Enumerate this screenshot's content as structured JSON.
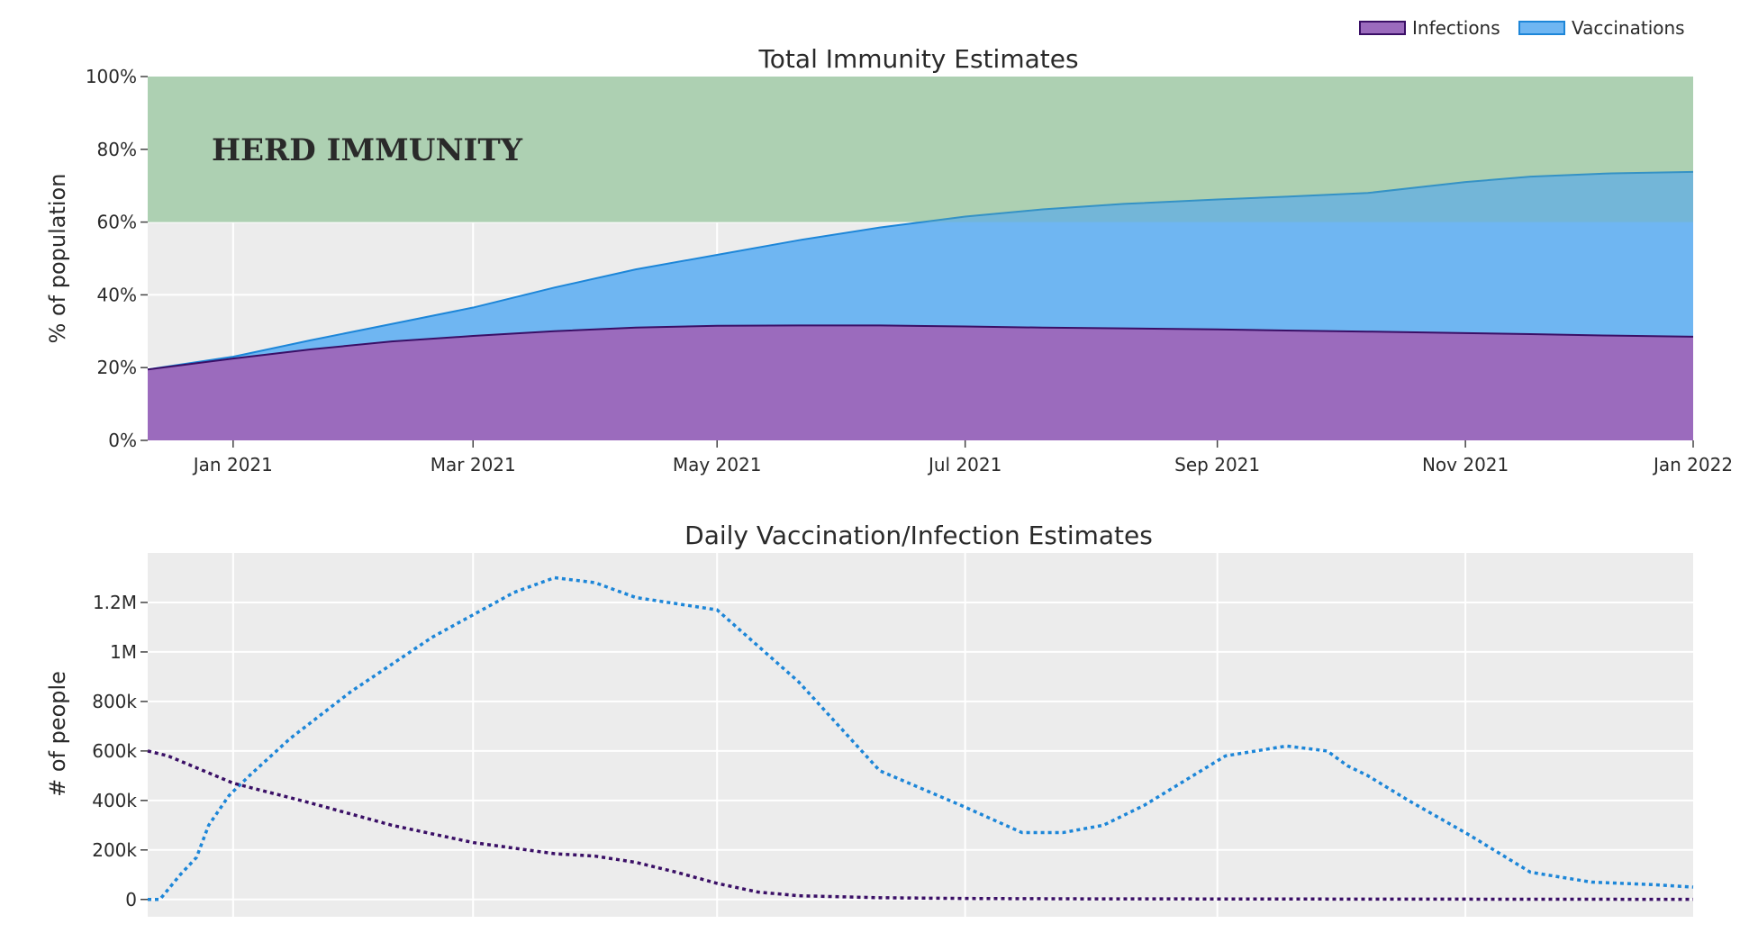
{
  "legend": [
    {
      "label": "Infections",
      "color": "#9b6bbd",
      "line": "#3a0f66"
    },
    {
      "label": "Vaccinations",
      "color": "#6fb6f2",
      "line": "#1d86d8"
    }
  ],
  "colors": {
    "plot_bg": "#ececec",
    "herd_band": "#bdd9bf",
    "herd_text": "#1a6b1a",
    "infections_fill": "#9b6bbd",
    "infections_line": "#3a0f66",
    "vaccinations_fill": "#6fb6f2",
    "vaccinations_line": "#1d86d8"
  },
  "chart_data": [
    {
      "type": "area",
      "title": "Total Immunity Estimates",
      "ylabel": "% of population",
      "xlabel": "",
      "ylim": [
        0,
        100
      ],
      "yticks": [
        0,
        20,
        40,
        60,
        80,
        100
      ],
      "ytick_labels": [
        "0%",
        "20%",
        "40%",
        "60%",
        "80%",
        "100%"
      ],
      "xlim": [
        0,
        380
      ],
      "xticks": [
        21,
        80,
        140,
        201,
        263,
        324,
        385
      ],
      "xtick_labels": [
        "Jan 2021",
        "Mar 2021",
        "May 2021",
        "Jul 2021",
        "Sep 2021",
        "Nov 2021",
        "Jan 2022"
      ],
      "herd_immunity": {
        "label": "HERD IMMUNITY",
        "from": 60,
        "to": 100
      },
      "x": [
        0,
        21,
        40,
        60,
        80,
        100,
        120,
        140,
        160,
        180,
        201,
        220,
        240,
        263,
        280,
        300,
        324,
        340,
        360,
        380
      ],
      "series": [
        {
          "name": "Infections",
          "stacked": false,
          "values": [
            19.5,
            22.5,
            25,
            27.2,
            28.7,
            30,
            31,
            31.5,
            31.6,
            31.6,
            31.3,
            31,
            30.8,
            30.5,
            30.2,
            29.9,
            29.5,
            29.2,
            28.8,
            28.5
          ]
        },
        {
          "name": "Vaccinations",
          "stacked": false,
          "values": [
            19.5,
            23,
            27.5,
            32,
            36.5,
            42,
            47,
            51,
            55,
            58.5,
            61.5,
            63.5,
            65,
            66.2,
            67,
            68,
            71,
            72.5,
            73.4,
            73.8
          ]
        }
      ]
    },
    {
      "type": "line",
      "title": "Daily Vaccination/Infection Estimates",
      "ylabel": "# of people",
      "xlabel": "",
      "ylim": [
        -70000,
        1400000
      ],
      "yticks": [
        0,
        200000,
        400000,
        600000,
        800000,
        1000000,
        1200000
      ],
      "ytick_labels": [
        "0",
        "200k",
        "400k",
        "600k",
        "800k",
        "1M",
        "1.2M"
      ],
      "xlim": [
        0,
        380
      ],
      "xticks": [
        21,
        80,
        140,
        201,
        263,
        324
      ],
      "x_infections": [
        0,
        5,
        21,
        40,
        60,
        80,
        100,
        110,
        120,
        130,
        140,
        150,
        160,
        180,
        201,
        230,
        263,
        300,
        340,
        380
      ],
      "series": [
        {
          "name": "Infections",
          "values": [
            600000,
            580000,
            470000,
            390000,
            300000,
            230000,
            185000,
            175000,
            150000,
            110000,
            65000,
            30000,
            15000,
            7000,
            4000,
            2500,
            2000,
            1500,
            1000,
            500
          ]
        },
        {
          "name": "Vaccinations",
          "x": [
            0,
            3,
            8,
            12,
            15,
            20,
            25,
            35,
            50,
            70,
            90,
            100,
            110,
            120,
            140,
            160,
            180,
            200,
            215,
            225,
            235,
            245,
            255,
            265,
            280,
            290,
            295,
            300,
            310,
            325,
            340,
            355,
            370,
            380
          ],
          "values": [
            0,
            0,
            100000,
            170000,
            300000,
            420000,
            500000,
            650000,
            840000,
            1060000,
            1240000,
            1300000,
            1280000,
            1220000,
            1170000,
            880000,
            520000,
            380000,
            270000,
            270000,
            300000,
            380000,
            480000,
            580000,
            620000,
            600000,
            540000,
            500000,
            400000,
            260000,
            110000,
            70000,
            60000,
            50000
          ]
        }
      ]
    }
  ]
}
